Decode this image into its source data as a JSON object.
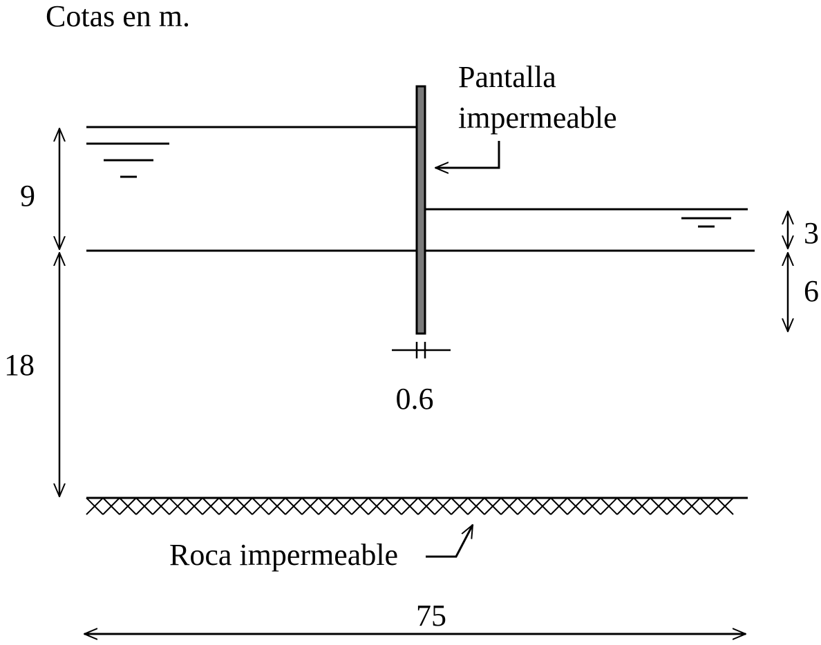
{
  "header": {
    "units_note": "Cotas en m."
  },
  "labels": {
    "wall_line1": "Pantalla",
    "wall_line2": "impermeable",
    "rock": "Roca impermeable"
  },
  "dimensions": {
    "upstream_water_height": "9",
    "soil_depth": "18",
    "downstream_water_height": "3",
    "wall_embedment_below_ground": "6",
    "wall_thickness": "0.6",
    "total_width": "75"
  },
  "colors": {
    "line": "#000000",
    "wall_fill": "#7a7a7a",
    "background": "#ffffff"
  }
}
